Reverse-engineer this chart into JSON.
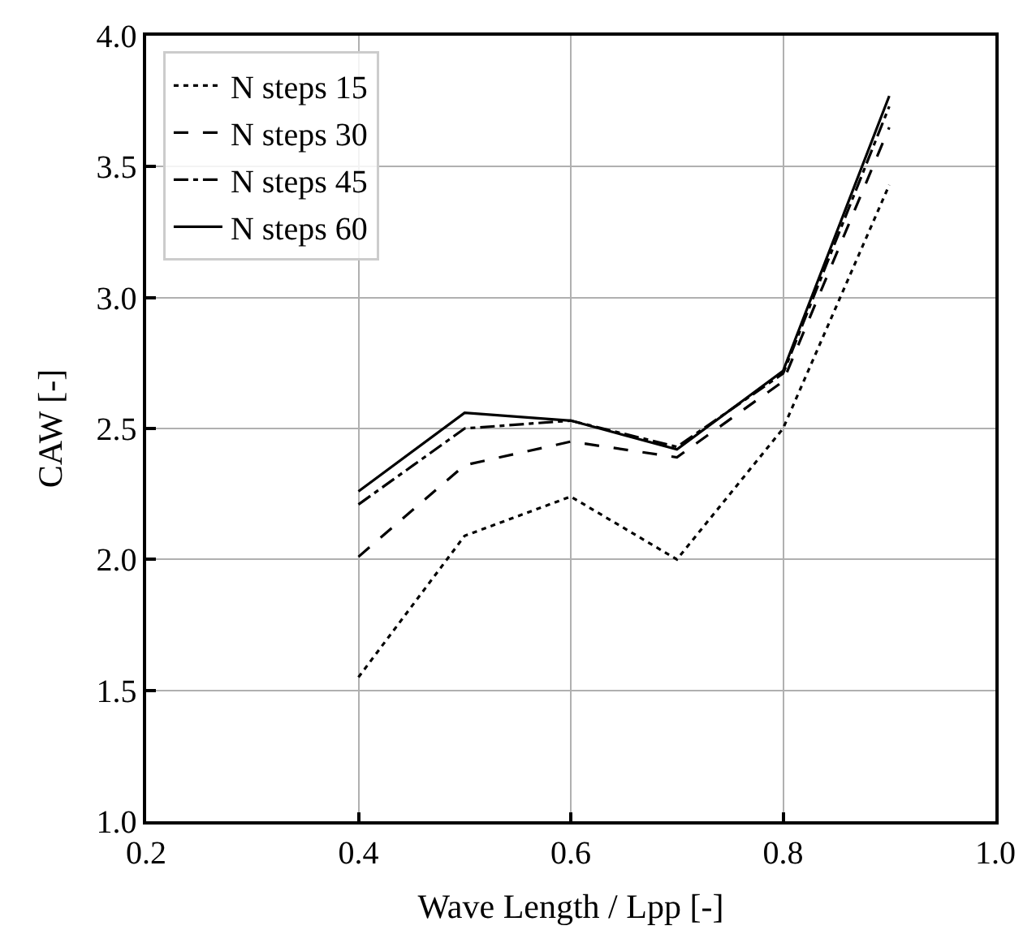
{
  "chart_data": {
    "type": "line",
    "xlabel": "Wave Length / Lpp [-]",
    "ylabel": "CAW [-]",
    "x": [
      0.4,
      0.5,
      0.6,
      0.7,
      0.8,
      0.9
    ],
    "series": [
      {
        "name": "N steps 15",
        "color": "#000000",
        "line_style": "dotted",
        "values": [
          1.55,
          2.09,
          2.24,
          2.0,
          2.5,
          3.43
        ]
      },
      {
        "name": "N steps 30",
        "color": "#000000",
        "line_style": "dashed",
        "values": [
          2.01,
          2.36,
          2.45,
          2.39,
          2.68,
          3.65
        ]
      },
      {
        "name": "N steps 45",
        "color": "#000000",
        "line_style": "dashdot",
        "values": [
          2.21,
          2.5,
          2.53,
          2.43,
          2.71,
          3.73
        ]
      },
      {
        "name": "N steps 60",
        "color": "#000000",
        "line_style": "solid",
        "values": [
          2.26,
          2.56,
          2.53,
          2.42,
          2.72,
          3.77
        ]
      }
    ],
    "xlim": [
      0.2,
      1.0
    ],
    "xticks": [
      {
        "value": 0.2,
        "label": "0.2"
      },
      {
        "value": 0.4,
        "label": "0.4"
      },
      {
        "value": 0.6,
        "label": "0.6"
      },
      {
        "value": 0.8,
        "label": "0.8"
      },
      {
        "value": 1.0,
        "label": "1.0"
      }
    ],
    "ylim": [
      1.0,
      4.0
    ],
    "yticks": [
      {
        "value": 1.0,
        "label": "1.0"
      },
      {
        "value": 1.5,
        "label": "1.5"
      },
      {
        "value": 2.0,
        "label": "2.0"
      },
      {
        "value": 2.5,
        "label": "2.5"
      },
      {
        "value": 3.0,
        "label": "3.0"
      },
      {
        "value": 3.5,
        "label": "3.5"
      },
      {
        "value": 4.0,
        "label": "4.0"
      }
    ],
    "grid": true,
    "legend": "top left"
  }
}
